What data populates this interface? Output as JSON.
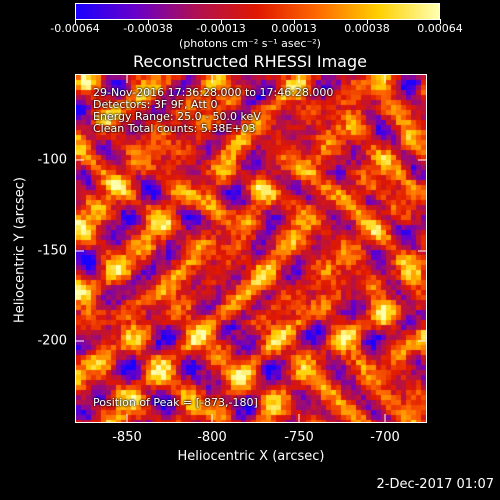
{
  "colorbar": {
    "ticks": [
      "-0.00064",
      "-0.00038",
      "-0.00013",
      "0.00013",
      "0.00038",
      "0.00064"
    ],
    "units": "(photons cm⁻² s⁻¹ asec⁻²)"
  },
  "title": "Reconstructed RHESSI Image",
  "annotations": {
    "time_range": "29-Nov-2016 17:36:28.000 to 17:46:28.000",
    "detectors": "Detectors: 3F 9F, Att 0",
    "energy": "Energy Range: 25.0 - 50.0 keV",
    "clean": "Clean     Total counts: 5.38E+03",
    "peak": "Position of Peak = [-873,-180]"
  },
  "axes": {
    "xlabel": "Heliocentric X (arcsec)",
    "ylabel": "Heliocentric Y (arcsec)",
    "xticks": [
      "-850",
      "-800",
      "-750",
      "-700"
    ],
    "yticks": [
      "-100",
      "-150",
      "-200"
    ]
  },
  "timestamp": "2-Dec-2017 01:07",
  "colors": {
    "background": "#000000",
    "colormap": [
      "#1a00ff",
      "#6a00c8",
      "#b01050",
      "#e01800",
      "#ff6a00",
      "#ffd000",
      "#ffffb0"
    ]
  }
}
